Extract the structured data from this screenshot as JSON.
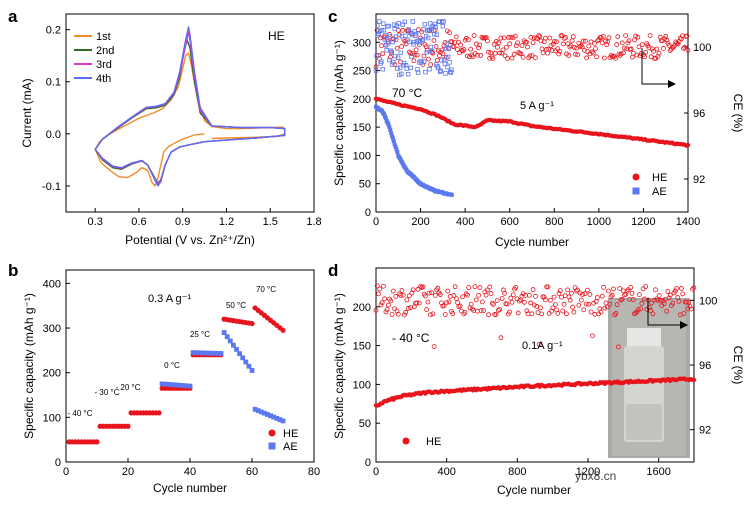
{
  "chart_data": [
    {
      "panel": "a",
      "type": "line",
      "title": "HE",
      "xlabel": "Potential (V vs. Zn²⁺/Zn)",
      "ylabel": "Current (mA)",
      "xlim": [
        0.1,
        1.8
      ],
      "ylim": [
        -0.15,
        0.23
      ],
      "xticks": [
        "0.3",
        "0.6",
        "0.9",
        "1.2",
        "1.5",
        "1.8"
      ],
      "yticks": [
        "-0.1",
        "0.0",
        "0.1",
        "0.2"
      ],
      "legend": [
        "1st",
        "2nd",
        "3rd",
        "4th"
      ],
      "colors": [
        "#F28C28",
        "#2E6B1F",
        "#D838D8",
        "#5B6CF0"
      ],
      "series": [
        {
          "name": "1st",
          "anodic": [
            [
              1.05,
              0.0
            ],
            [
              0.98,
              -0.002
            ],
            [
              0.9,
              -0.01
            ],
            [
              0.85,
              -0.017
            ],
            [
              0.8,
              -0.025
            ],
            [
              0.77,
              -0.035
            ],
            [
              0.75,
              -0.06
            ],
            [
              0.73,
              -0.085
            ],
            [
              0.71,
              -0.1
            ],
            [
              0.69,
              -0.094
            ],
            [
              0.66,
              -0.07
            ],
            [
              0.62,
              -0.065
            ],
            [
              0.58,
              -0.075
            ],
            [
              0.52,
              -0.084
            ],
            [
              0.46,
              -0.082
            ],
            [
              0.4,
              -0.07
            ],
            [
              0.34,
              -0.055
            ],
            [
              0.3,
              -0.03
            ],
            [
              0.33,
              -0.015
            ],
            [
              0.4,
              0.0
            ],
            [
              0.5,
              0.015
            ],
            [
              0.6,
              0.03
            ],
            [
              0.65,
              0.035
            ],
            [
              0.7,
              0.04
            ],
            [
              0.76,
              0.048
            ],
            [
              0.82,
              0.065
            ],
            [
              0.87,
              0.09
            ],
            [
              0.9,
              0.125
            ],
            [
              0.92,
              0.15
            ],
            [
              0.94,
              0.155
            ],
            [
              0.96,
              0.13
            ],
            [
              1.0,
              0.07
            ],
            [
              1.05,
              0.025
            ],
            [
              1.1,
              0.014
            ],
            [
              1.2,
              0.01
            ],
            [
              1.3,
              0.01
            ],
            [
              1.4,
              0.011
            ],
            [
              1.5,
              0.012
            ],
            [
              1.58,
              0.013
            ],
            [
              1.6,
              0.01
            ],
            [
              1.6,
              0.0
            ],
            [
              1.55,
              -0.005
            ],
            [
              1.45,
              -0.006
            ],
            [
              1.35,
              -0.007
            ],
            [
              1.2,
              -0.008
            ],
            [
              1.1,
              -0.009
            ]
          ]
        },
        {
          "name": "2nd",
          "anodic": [
            [
              0.3,
              -0.03
            ],
            [
              0.35,
              -0.05
            ],
            [
              0.42,
              -0.065
            ],
            [
              0.48,
              -0.068
            ],
            [
              0.55,
              -0.058
            ],
            [
              0.62,
              -0.052
            ],
            [
              0.66,
              -0.06
            ],
            [
              0.7,
              -0.08
            ],
            [
              0.73,
              -0.095
            ],
            [
              0.75,
              -0.088
            ],
            [
              0.78,
              -0.06
            ],
            [
              0.82,
              -0.035
            ],
            [
              0.88,
              -0.025
            ],
            [
              0.96,
              -0.02
            ],
            [
              1.05,
              -0.015
            ],
            [
              1.2,
              -0.012
            ],
            [
              1.4,
              -0.008
            ],
            [
              1.6,
              -0.003
            ],
            [
              1.6,
              0.01
            ],
            [
              1.5,
              0.012
            ],
            [
              1.3,
              0.012
            ],
            [
              1.1,
              0.015
            ],
            [
              1.02,
              0.04
            ],
            [
              0.98,
              0.1
            ],
            [
              0.95,
              0.165
            ],
            [
              0.93,
              0.18
            ],
            [
              0.91,
              0.16
            ],
            [
              0.88,
              0.11
            ],
            [
              0.84,
              0.075
            ],
            [
              0.78,
              0.055
            ],
            [
              0.72,
              0.05
            ],
            [
              0.65,
              0.048
            ],
            [
              0.55,
              0.03
            ],
            [
              0.45,
              0.01
            ],
            [
              0.35,
              -0.01
            ],
            [
              0.3,
              -0.03
            ]
          ]
        },
        {
          "name": "3rd",
          "anodic": [
            [
              0.3,
              -0.03
            ],
            [
              0.35,
              -0.048
            ],
            [
              0.42,
              -0.063
            ],
            [
              0.48,
              -0.066
            ],
            [
              0.55,
              -0.057
            ],
            [
              0.62,
              -0.052
            ],
            [
              0.66,
              -0.06
            ],
            [
              0.7,
              -0.082
            ],
            [
              0.73,
              -0.097
            ],
            [
              0.75,
              -0.09
            ],
            [
              0.78,
              -0.06
            ],
            [
              0.82,
              -0.035
            ],
            [
              0.88,
              -0.025
            ],
            [
              0.96,
              -0.02
            ],
            [
              1.05,
              -0.015
            ],
            [
              1.2,
              -0.012
            ],
            [
              1.4,
              -0.008
            ],
            [
              1.6,
              -0.003
            ],
            [
              1.6,
              0.01
            ],
            [
              1.5,
              0.012
            ],
            [
              1.3,
              0.012
            ],
            [
              1.1,
              0.015
            ],
            [
              1.02,
              0.045
            ],
            [
              0.98,
              0.11
            ],
            [
              0.95,
              0.18
            ],
            [
              0.94,
              0.195
            ],
            [
              0.92,
              0.17
            ],
            [
              0.88,
              0.115
            ],
            [
              0.84,
              0.078
            ],
            [
              0.78,
              0.057
            ],
            [
              0.72,
              0.052
            ],
            [
              0.65,
              0.05
            ],
            [
              0.55,
              0.031
            ],
            [
              0.45,
              0.011
            ],
            [
              0.35,
              -0.01
            ],
            [
              0.3,
              -0.03
            ]
          ]
        },
        {
          "name": "4th",
          "anodic": [
            [
              0.3,
              -0.03
            ],
            [
              0.35,
              -0.047
            ],
            [
              0.42,
              -0.062
            ],
            [
              0.48,
              -0.065
            ],
            [
              0.55,
              -0.056
            ],
            [
              0.62,
              -0.051
            ],
            [
              0.66,
              -0.06
            ],
            [
              0.7,
              -0.083
            ],
            [
              0.73,
              -0.1
            ],
            [
              0.75,
              -0.092
            ],
            [
              0.78,
              -0.06
            ],
            [
              0.82,
              -0.035
            ],
            [
              0.88,
              -0.025
            ],
            [
              0.96,
              -0.02
            ],
            [
              1.05,
              -0.015
            ],
            [
              1.2,
              -0.012
            ],
            [
              1.4,
              -0.008
            ],
            [
              1.6,
              -0.003
            ],
            [
              1.6,
              0.01
            ],
            [
              1.5,
              0.012
            ],
            [
              1.3,
              0.012
            ],
            [
              1.1,
              0.015
            ],
            [
              1.02,
              0.05
            ],
            [
              0.98,
              0.12
            ],
            [
              0.95,
              0.19
            ],
            [
              0.94,
              0.205
            ],
            [
              0.92,
              0.18
            ],
            [
              0.88,
              0.12
            ],
            [
              0.84,
              0.08
            ],
            [
              0.78,
              0.058
            ],
            [
              0.72,
              0.053
            ],
            [
              0.65,
              0.051
            ],
            [
              0.55,
              0.032
            ],
            [
              0.45,
              0.012
            ],
            [
              0.35,
              -0.01
            ],
            [
              0.3,
              -0.03
            ]
          ]
        }
      ]
    },
    {
      "panel": "b",
      "type": "scatter",
      "xlabel": "Cycle number",
      "ylabel": "Specific capacity (mAh g⁻¹)",
      "xlim": [
        0,
        80
      ],
      "ylim": [
        0,
        430
      ],
      "xticks": [
        "0",
        "20",
        "40",
        "60",
        "80"
      ],
      "yticks": [
        "0",
        "100",
        "200",
        "300",
        "400"
      ],
      "annotations": [
        "0.3 A g⁻¹",
        "- 40 °C",
        "- 30 °C",
        "- 20 °C",
        "0 °C",
        "25 °C",
        "50 °C",
        "70 °C"
      ],
      "legend": [
        "HE",
        "AE"
      ],
      "colors": {
        "HE": "#E8141C",
        "AE": "#5B78F0"
      },
      "series": [
        {
          "name": "HE",
          "segments": [
            [
              1,
              10,
              45,
              45
            ],
            [
              11,
              20,
              80,
              80
            ],
            [
              21,
              30,
              110,
              110
            ],
            [
              31,
              40,
              165,
              165
            ],
            [
              41,
              50,
              240,
              240
            ],
            [
              51,
              60,
              320,
              310
            ],
            [
              61,
              70,
              345,
              295
            ]
          ]
        },
        {
          "name": "AE",
          "segments": [
            [
              31,
              40,
              175,
              170
            ],
            [
              41,
              50,
              245,
              243
            ],
            [
              51,
              60,
              290,
              205
            ],
            [
              61,
              70,
              118,
              92
            ]
          ]
        }
      ]
    },
    {
      "panel": "c",
      "type": "scatter",
      "xlabel": "Cycle number",
      "ylabel": "Specific capacity (mAh g⁻¹)",
      "ylabel2": "CE (%)",
      "xlim": [
        0,
        1400
      ],
      "ylim": [
        0,
        350
      ],
      "y2lim": [
        90,
        102
      ],
      "xticks": [
        "0",
        "200",
        "400",
        "600",
        "800",
        "1000",
        "1200",
        "1400"
      ],
      "yticks": [
        "0",
        "50",
        "100",
        "150",
        "200",
        "250",
        "300"
      ],
      "y2ticks": [
        "92",
        "96",
        "100"
      ],
      "annotations": [
        "70 °C",
        "5 A g⁻¹"
      ],
      "legend": [
        "HE",
        "AE"
      ],
      "colors": {
        "HE": "#E8141C",
        "AE": "#5B78F0"
      },
      "series": [
        {
          "name": "HE",
          "capacity": [
            [
              0,
              200
            ],
            [
              100,
              190
            ],
            [
              200,
              182
            ],
            [
              280,
              170
            ],
            [
              350,
              155
            ],
            [
              450,
              150
            ],
            [
              500,
              162
            ],
            [
              600,
              160
            ],
            [
              700,
              152
            ],
            [
              800,
              147
            ],
            [
              1000,
              138
            ],
            [
              1200,
              128
            ],
            [
              1400,
              118
            ]
          ],
          "ce": "≈100 (scattered 98.5–101.5)"
        },
        {
          "name": "AE",
          "capacity": [
            [
              0,
              185
            ],
            [
              30,
              178
            ],
            [
              60,
              150
            ],
            [
              100,
              100
            ],
            [
              140,
              72
            ],
            [
              200,
              50
            ],
            [
              260,
              38
            ],
            [
              340,
              30
            ]
          ],
          "ce": "≈100 (scattered 98–102)"
        }
      ]
    },
    {
      "panel": "d",
      "type": "scatter",
      "xlabel": "Cycle number",
      "ylabel": "Specific capacity (mAh g⁻¹)",
      "ylabel2": "CE (%)",
      "xlim": [
        0,
        1800
      ],
      "ylim": [
        0,
        250
      ],
      "y2lim": [
        90,
        102
      ],
      "xticks": [
        "0",
        "400",
        "800",
        "1200",
        "1600"
      ],
      "yticks": [
        "0",
        "50",
        "100",
        "150",
        "200"
      ],
      "y2ticks": [
        "92",
        "96",
        "100"
      ],
      "annotations": [
        "- 40 °C",
        "0.1A g⁻¹"
      ],
      "legend": [
        "HE"
      ],
      "colors": {
        "HE": "#E8141C"
      },
      "series": [
        {
          "name": "HE",
          "capacity": [
            [
              0,
              72
            ],
            [
              50,
              78
            ],
            [
              150,
              85
            ],
            [
              300,
              90
            ],
            [
              600,
              94
            ],
            [
              900,
              98
            ],
            [
              1200,
              101
            ],
            [
              1500,
              104
            ],
            [
              1800,
              107
            ]
          ],
          "ce": "≈100 (scattered 97–102)"
        }
      ]
    }
  ],
  "watermark": "ybx8.cn"
}
